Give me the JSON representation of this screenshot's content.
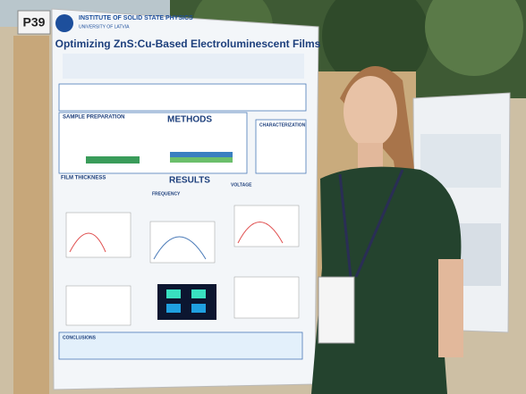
{
  "board_label": "P39",
  "poster": {
    "institute": "INSTITUTE OF SOLID STATE PHYSICS",
    "university": "UNIVERSITY OF LATVIA",
    "title": "Optimizing ZnS:Cu-Based Electroluminescent Films",
    "sections": {
      "methods": "METHODS",
      "sample_preparation": "SAMPLE PREPARATION",
      "characterization": "CHARACTERIZATION",
      "film_thickness": "FILM THICKNESS",
      "results": "RESULTS",
      "frequency": "FREQUENCY",
      "voltage": "VOLTAGE",
      "conclusions": "CONCLUSIONS"
    }
  }
}
